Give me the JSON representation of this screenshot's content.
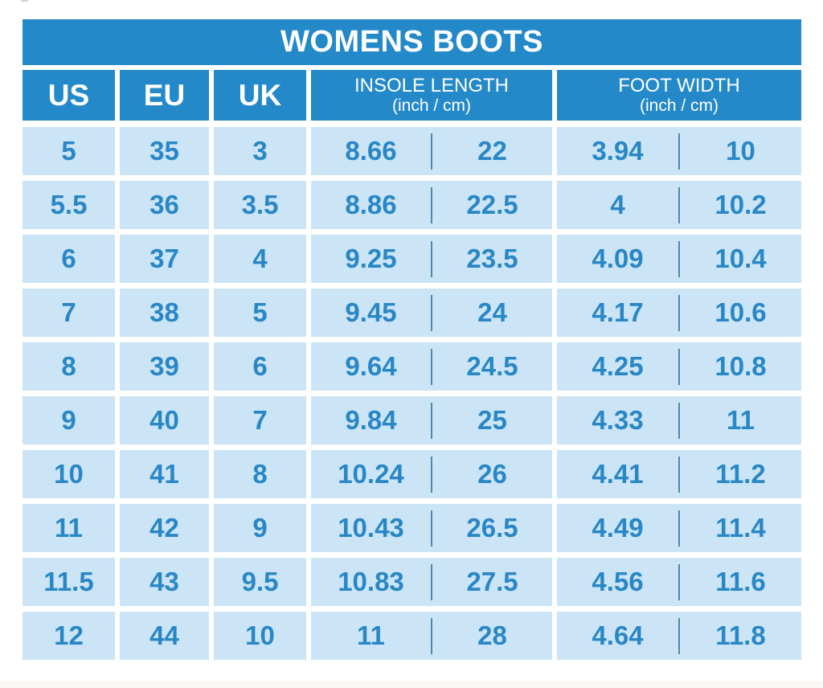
{
  "chart_data": {
    "type": "table",
    "title": "WOMENS BOOTS",
    "header": {
      "us": "US",
      "eu": "EU",
      "uk": "UK",
      "insole_title": "INSOLE LENGTH",
      "insole_sub": "(inch / cm)",
      "footwidth_title": "FOOT WIDTH",
      "footwidth_sub": "(inch / cm)"
    },
    "rows": [
      {
        "us": "5",
        "eu": "35",
        "uk": "3",
        "insole_inch": "8.66",
        "insole_cm": "22",
        "width_inch": "3.94",
        "width_cm": "10"
      },
      {
        "us": "5.5",
        "eu": "36",
        "uk": "3.5",
        "insole_inch": "8.86",
        "insole_cm": "22.5",
        "width_inch": "4",
        "width_cm": "10.2"
      },
      {
        "us": "6",
        "eu": "37",
        "uk": "4",
        "insole_inch": "9.25",
        "insole_cm": "23.5",
        "width_inch": "4.09",
        "width_cm": "10.4"
      },
      {
        "us": "7",
        "eu": "38",
        "uk": "5",
        "insole_inch": "9.45",
        "insole_cm": "24",
        "width_inch": "4.17",
        "width_cm": "10.6"
      },
      {
        "us": "8",
        "eu": "39",
        "uk": "6",
        "insole_inch": "9.64",
        "insole_cm": "24.5",
        "width_inch": "4.25",
        "width_cm": "10.8"
      },
      {
        "us": "9",
        "eu": "40",
        "uk": "7",
        "insole_inch": "9.84",
        "insole_cm": "25",
        "width_inch": "4.33",
        "width_cm": "11"
      },
      {
        "us": "10",
        "eu": "41",
        "uk": "8",
        "insole_inch": "10.24",
        "insole_cm": "26",
        "width_inch": "4.41",
        "width_cm": "11.2"
      },
      {
        "us": "11",
        "eu": "42",
        "uk": "9",
        "insole_inch": "10.43",
        "insole_cm": "26.5",
        "width_inch": "4.49",
        "width_cm": "11.4"
      },
      {
        "us": "11.5",
        "eu": "43",
        "uk": "9.5",
        "insole_inch": "10.83",
        "insole_cm": "27.5",
        "width_inch": "4.56",
        "width_cm": "11.6"
      },
      {
        "us": "12",
        "eu": "44",
        "uk": "10",
        "insole_inch": "11",
        "insole_cm": "28",
        "width_inch": "4.64",
        "width_cm": "11.8"
      }
    ]
  },
  "colors": {
    "header_blue": "#2389C9",
    "cell_blue": "#CBE5F6",
    "text_blue": "#2987C6",
    "divider": "#4E89A8"
  }
}
